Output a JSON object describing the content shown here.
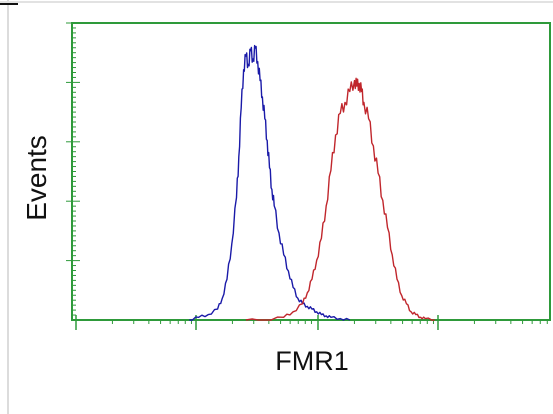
{
  "chart_data": {
    "type": "line",
    "title": "",
    "xlabel": "FMR1",
    "ylabel": "Events",
    "xlim": [
      0,
      100
    ],
    "ylim": [
      0,
      100
    ],
    "grid": false,
    "legend": "none",
    "series": [
      {
        "color": "#1a1aa8",
        "x": [
          24,
          26,
          28,
          30,
          31,
          32,
          33,
          34,
          34.5,
          35,
          35.5,
          36,
          36.5,
          37,
          37.5,
          38,
          38.5,
          39,
          39.5,
          40,
          40.5,
          41,
          41.5,
          42,
          43,
          44,
          45,
          46,
          47,
          48,
          49,
          50,
          51,
          52,
          53,
          54,
          56,
          58
        ],
        "y": [
          0,
          1,
          2,
          4,
          8,
          15,
          28,
          45,
          60,
          78,
          92,
          97,
          94,
          99,
          96,
          100,
          95,
          88,
          82,
          74,
          66,
          56,
          48,
          42,
          32,
          24,
          18,
          12,
          8,
          6,
          5,
          4,
          3,
          2,
          1.5,
          1,
          0.5,
          0
        ]
      },
      {
        "color": "#c0262c",
        "x": [
          36,
          40,
          44,
          46,
          48,
          49,
          50,
          51,
          52,
          53,
          54,
          55,
          56,
          57,
          58,
          59,
          59.5,
          60,
          60.5,
          61,
          62,
          63,
          64,
          65,
          66,
          67,
          68,
          69,
          70,
          71,
          72,
          73,
          74,
          76
        ],
        "y": [
          0,
          0,
          1,
          3,
          6,
          10,
          15,
          22,
          30,
          42,
          55,
          68,
          76,
          80,
          84,
          88,
          86,
          87,
          84,
          80,
          74,
          64,
          54,
          44,
          34,
          24,
          15,
          9,
          6,
          3,
          2,
          1,
          0.5,
          0
        ]
      }
    ]
  }
}
